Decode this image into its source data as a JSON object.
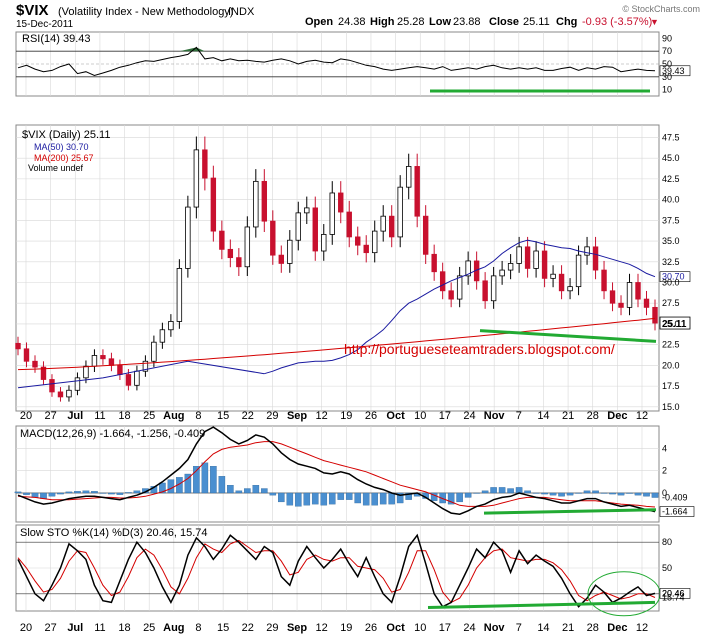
{
  "header": {
    "symbol": "$VIX",
    "name": "(Volatility Index - New Methodology)",
    "exchange": "INDX",
    "date": "15-Dec-2011",
    "open_label": "Open",
    "open": "24.38",
    "high_label": "High",
    "high": "25.28",
    "low_label": "Low",
    "low": "23.88",
    "close_label": "Close",
    "close": "25.11",
    "chg_label": "Chg",
    "chg": "-0.93 (-3.57%)",
    "chg_arrow": "▼",
    "copyright": "© StockCharts.com"
  },
  "annotation_url": "http://portugueseteamtraders.blogspot.com/",
  "colors": {
    "up": "#000000",
    "down": "#c8102e",
    "ma50": "#1a1aa0",
    "ma200": "#d40000",
    "trend": "#22aa33",
    "macd_hist": "#4a8fd0",
    "grid": "#d8d8d8"
  },
  "chart_data": [
    {
      "type": "line",
      "panel": "rsi",
      "legend": "RSI(14) 39.43",
      "ylim": [
        0,
        100
      ],
      "ticks": [
        10,
        30,
        50,
        70,
        90
      ],
      "last_value": 39.43,
      "values": [
        44,
        48,
        42,
        38,
        40,
        46,
        50,
        35,
        38,
        32,
        36,
        40,
        45,
        48,
        52,
        55,
        54,
        57,
        60,
        62,
        65,
        76,
        58,
        60,
        55,
        58,
        55,
        56,
        54,
        53,
        56,
        58,
        55,
        50,
        54,
        56,
        53,
        52,
        58,
        56,
        52,
        48,
        46,
        42,
        40,
        42,
        44,
        46,
        44,
        42,
        46,
        40,
        42,
        44,
        42,
        46,
        48,
        44,
        42,
        44,
        42,
        44,
        40,
        40,
        43,
        45,
        40,
        44,
        42,
        46,
        45,
        38,
        40,
        42,
        40,
        39.43
      ]
    },
    {
      "type": "candlestick",
      "panel": "price",
      "legend": "$VIX (Daily) 25.11",
      "ylim": [
        14.5,
        49
      ],
      "ticks": [
        15.0,
        17.5,
        20.0,
        22.5,
        25.0,
        27.5,
        30.0,
        32.5,
        35.0,
        37.5,
        40.0,
        42.5,
        45.0,
        47.5
      ],
      "x_labels": [
        "20",
        "27",
        "Jul",
        "11",
        "18",
        "25",
        "Aug",
        "8",
        "15",
        "22",
        "29",
        "Sep",
        "12",
        "19",
        "26",
        "Oct",
        "10",
        "17",
        "24",
        "Nov",
        "7",
        "14",
        "21",
        "28",
        "Dec",
        "12"
      ],
      "series": [
        {
          "name": "MA(50) 30.70",
          "last": 30.7
        },
        {
          "name": "MA(200) 25.67",
          "last": 25.67
        },
        {
          "name": "Volume undef"
        }
      ],
      "last_close": 25.11,
      "closes": [
        22.0,
        20.5,
        19.8,
        18.3,
        16.8,
        16.2,
        17.0,
        18.5,
        19.9,
        21.2,
        20.8,
        20.0,
        18.9,
        17.6,
        19.3,
        20.5,
        22.8,
        24.3,
        25.3,
        31.7,
        39.1,
        46.0,
        42.6,
        36.2,
        34.0,
        33.0,
        31.9,
        36.7,
        42.2,
        37.4,
        33.3,
        32.3,
        35.1,
        38.4,
        39.0,
        33.8,
        35.8,
        40.8,
        38.5,
        35.5,
        34.5,
        33.6,
        36.2,
        38.0,
        35.5,
        41.5,
        44.0,
        38.0,
        33.4,
        31.3,
        29.0,
        28.0,
        30.8,
        32.6,
        30.2,
        27.8,
        30.8,
        31.5,
        32.3,
        34.3,
        31.7,
        33.8,
        30.5,
        31.0,
        29.0,
        29.5,
        33.3,
        34.3,
        31.5,
        29.0,
        27.5,
        27.0,
        30.0,
        28.0,
        27.0,
        25.11
      ],
      "ma50": [
        19.0,
        19.3,
        19.7,
        20.0,
        20.3,
        20.4,
        20.5,
        20.5,
        20.6,
        20.9,
        21.3,
        21.9,
        22.8,
        23.5,
        24.3,
        25.4,
        26.6,
        27.5,
        28.0,
        28.6,
        29.2,
        29.7,
        30.2,
        30.6,
        31.0,
        31.5,
        31.9,
        32.6,
        33.5,
        34.2,
        34.8,
        35.1,
        34.9,
        34.6,
        34.4,
        34.2,
        34.1,
        33.8,
        33.6,
        33.4,
        33.1,
        32.8,
        32.5,
        32.2,
        31.7,
        31.1,
        30.7
      ]
    },
    {
      "type": "line",
      "panel": "macd",
      "legend": "MACD(12,26,9) -1.664, -1.256, -0.409",
      "ylim": [
        -2.6,
        6
      ],
      "ticks": [
        -0.409,
        0,
        2,
        4
      ],
      "last_values": [
        -1.664,
        -1.256,
        -0.409
      ],
      "macd": [
        -0.2,
        -0.5,
        -0.8,
        -1.0,
        -0.9,
        -0.7,
        -0.5,
        -0.4,
        -0.3,
        -0.3,
        -0.4,
        -0.5,
        -0.6,
        -0.4,
        -0.2,
        0.1,
        0.5,
        1.0,
        1.6,
        2.2,
        3.0,
        4.4,
        5.5,
        5.9,
        5.4,
        4.8,
        4.4,
        4.7,
        5.2,
        5.0,
        4.4,
        3.6,
        3.0,
        2.6,
        2.4,
        2.2,
        1.8,
        1.7,
        1.9,
        1.7,
        1.2,
        0.8,
        0.5,
        0.3,
        0.0,
        -0.2,
        -0.1,
        0.0,
        -0.4,
        -0.9,
        -1.4,
        -1.8,
        -1.9,
        -1.6,
        -1.2,
        -1.0,
        -0.6,
        -0.4,
        -0.3,
        0.0,
        -0.2,
        -0.4,
        -0.5,
        -0.7,
        -0.9,
        -0.9,
        -0.7,
        -0.5,
        -0.5,
        -0.8,
        -1.0,
        -1.2,
        -1.1,
        -1.3,
        -1.5,
        -1.664
      ],
      "signal": [
        -0.3,
        -0.35,
        -0.4,
        -0.5,
        -0.6,
        -0.6,
        -0.6,
        -0.55,
        -0.5,
        -0.45,
        -0.4,
        -0.4,
        -0.45,
        -0.45,
        -0.4,
        -0.3,
        -0.1,
        0.1,
        0.4,
        0.8,
        1.3,
        2.0,
        2.8,
        3.5,
        3.9,
        4.1,
        4.2,
        4.3,
        4.5,
        4.6,
        4.6,
        4.4,
        4.1,
        3.8,
        3.5,
        3.2,
        2.9,
        2.7,
        2.5,
        2.3,
        2.1,
        1.9,
        1.6,
        1.3,
        1.0,
        0.7,
        0.5,
        0.3,
        0.1,
        -0.2,
        -0.5,
        -0.8,
        -1.1,
        -1.2,
        -1.2,
        -1.2,
        -1.1,
        -0.9,
        -0.7,
        -0.5,
        -0.4,
        -0.4,
        -0.4,
        -0.5,
        -0.6,
        -0.7,
        -0.7,
        -0.7,
        -0.7,
        -0.8,
        -0.9,
        -1.0,
        -1.05,
        -1.1,
        -1.2,
        -1.256
      ],
      "hist": [
        0.1,
        -0.15,
        -0.4,
        -0.5,
        -0.3,
        -0.1,
        0.1,
        0.15,
        0.2,
        0.15,
        0.0,
        -0.1,
        -0.15,
        0.05,
        0.2,
        0.4,
        0.6,
        0.9,
        1.2,
        1.4,
        1.7,
        2.4,
        2.7,
        2.4,
        1.5,
        0.7,
        0.2,
        0.4,
        0.7,
        0.4,
        -0.2,
        -0.8,
        -1.1,
        -1.2,
        -1.1,
        -1.0,
        -1.1,
        -1.0,
        -0.6,
        -0.6,
        -0.9,
        -1.1,
        -1.1,
        -1.0,
        -1.0,
        -0.9,
        -0.6,
        -0.3,
        -0.5,
        -0.7,
        -0.9,
        -1.0,
        -0.8,
        -0.4,
        0.0,
        0.2,
        0.5,
        0.5,
        0.4,
        0.5,
        0.2,
        0.0,
        -0.1,
        -0.2,
        -0.3,
        -0.2,
        0.0,
        0.2,
        0.2,
        0.0,
        -0.1,
        -0.2,
        -0.05,
        -0.2,
        -0.3,
        -0.409
      ]
    },
    {
      "type": "line",
      "panel": "stochastic",
      "legend": "Slow STO %K(14) %D(3) 20.46, 15.74",
      "ylim": [
        0,
        100
      ],
      "ticks": [
        15.74,
        20.46,
        50,
        80
      ],
      "last_values": [
        20.46,
        15.74
      ],
      "k": [
        60,
        40,
        20,
        12,
        30,
        50,
        78,
        70,
        60,
        30,
        12,
        10,
        35,
        60,
        80,
        68,
        50,
        28,
        10,
        30,
        65,
        85,
        75,
        60,
        72,
        88,
        80,
        70,
        60,
        75,
        68,
        40,
        30,
        58,
        75,
        62,
        50,
        60,
        72,
        55,
        40,
        62,
        40,
        20,
        10,
        40,
        75,
        88,
        55,
        20,
        5,
        10,
        30,
        50,
        72,
        62,
        80,
        70,
        45,
        70,
        55,
        65,
        58,
        52,
        38,
        20,
        5,
        15,
        30,
        22,
        10,
        15,
        22,
        28,
        18,
        20.46
      ],
      "d": [
        62,
        50,
        35,
        22,
        25,
        38,
        58,
        70,
        68,
        50,
        30,
        18,
        22,
        40,
        62,
        72,
        65,
        48,
        28,
        20,
        38,
        62,
        78,
        72,
        68,
        78,
        82,
        75,
        68,
        70,
        70,
        58,
        42,
        45,
        60,
        65,
        60,
        58,
        62,
        62,
        52,
        50,
        48,
        38,
        22,
        25,
        45,
        70,
        70,
        48,
        22,
        10,
        15,
        30,
        50,
        62,
        70,
        72,
        62,
        60,
        58,
        60,
        60,
        56,
        48,
        35,
        18,
        12,
        18,
        22,
        18,
        14,
        16,
        20,
        20,
        15.74
      ]
    }
  ]
}
